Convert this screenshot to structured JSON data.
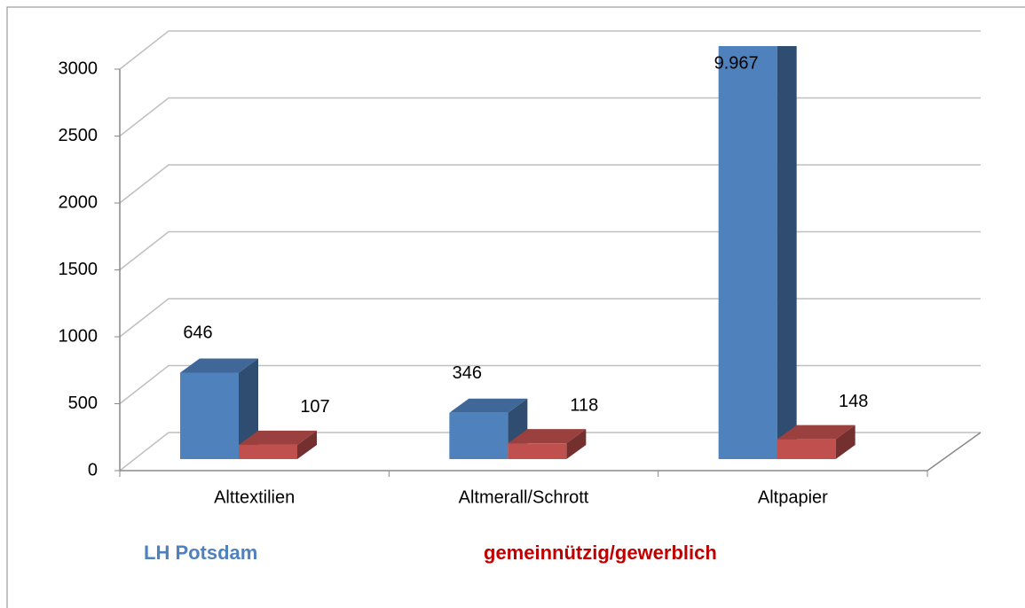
{
  "chart_data": {
    "type": "bar3d",
    "categories": [
      "Alttextilien",
      "Altmerall/Schrott",
      "Altpapier"
    ],
    "series": [
      {
        "name": "LH Potsdam",
        "color": "#4f81bd",
        "values": [
          646,
          346,
          9967
        ],
        "value_labels": [
          "646",
          "346",
          "9.967"
        ]
      },
      {
        "name": "gemeinnützig/gewerblich",
        "color": "#c0504d",
        "values": [
          107,
          118,
          148
        ]
      }
    ],
    "legend_colors": [
      "#4f81bd",
      "#c00000"
    ],
    "ylim": [
      0,
      3000
    ],
    "yticks": [
      0,
      500,
      1000,
      1500,
      2000,
      2500,
      3000
    ],
    "grid": true
  }
}
